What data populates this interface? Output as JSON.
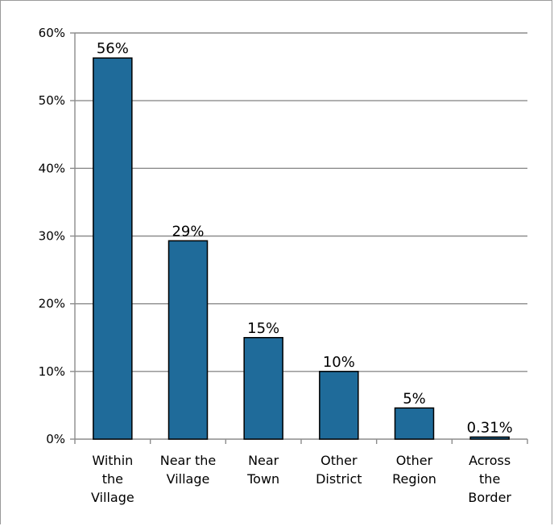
{
  "chart_data": {
    "type": "bar",
    "categories": [
      [
        "Within",
        "the",
        "Village"
      ],
      [
        "Near the",
        "Village"
      ],
      [
        "Near",
        "Town"
      ],
      [
        "Other",
        "District"
      ],
      [
        "Other",
        "Region"
      ],
      [
        "Across",
        "the",
        "Border"
      ]
    ],
    "values": [
      56.3,
      29.3,
      15.0,
      10.0,
      4.6,
      0.31
    ],
    "data_labels": [
      "56%",
      "29%",
      "15%",
      "10%",
      "5%",
      "0.31%"
    ],
    "ylim": [
      0,
      60
    ],
    "yticks": [
      "0%",
      "10%",
      "20%",
      "30%",
      "40%",
      "50%",
      "60%"
    ],
    "title": "",
    "xlabel": "",
    "ylabel": "",
    "grid": true,
    "legend": "none",
    "colors": {
      "bar": "#1f6b9a",
      "bar_edge": "#000000",
      "grid": "#8c8c8c",
      "axis": "#8c8c8c"
    }
  }
}
